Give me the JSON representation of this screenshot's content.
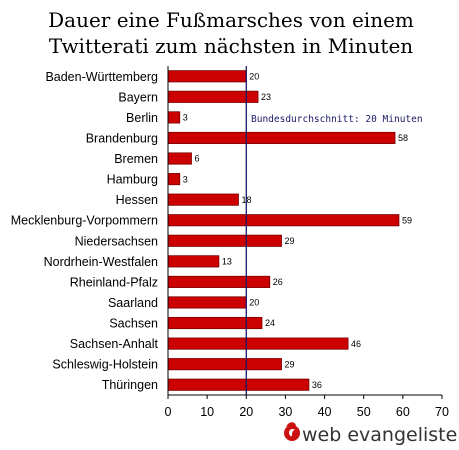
{
  "chart_data": {
    "type": "bar",
    "orientation": "horizontal",
    "title_lines": [
      "Dauer eine Fußmarsches von einem",
      "Twitterati zum nächsten in Minuten"
    ],
    "xlabel": "",
    "ylabel": "",
    "categories": [
      "Baden-Württemberg",
      "Bayern",
      "Berlin",
      "Brandenburg",
      "Bremen",
      "Hamburg",
      "Hessen",
      "Mecklenburg-Vorpommern",
      "Niedersachsen",
      "Nordrhein-Westfalen",
      "Rheinland-Pfalz",
      "Saarland",
      "Sachsen",
      "Sachsen-Anhalt",
      "Schleswig-Holstein",
      "Thüringen"
    ],
    "values": [
      20,
      23,
      3,
      58,
      6,
      3,
      18,
      59,
      29,
      13,
      26,
      20,
      24,
      46,
      29,
      36
    ],
    "xlim": [
      0,
      70
    ],
    "xticks": [
      0,
      10,
      20,
      30,
      40,
      50,
      60,
      70
    ],
    "grid": false,
    "reference_line": {
      "value": 20,
      "label": "Bundesdurchschnitt: 20 Minuten"
    },
    "colors": {
      "bar": "#cc0000",
      "bar_border": "#7a0000",
      "reference": "#1a1a66"
    }
  },
  "logo": {
    "text": "web evangelisten",
    "icon": "flame-icon"
  }
}
